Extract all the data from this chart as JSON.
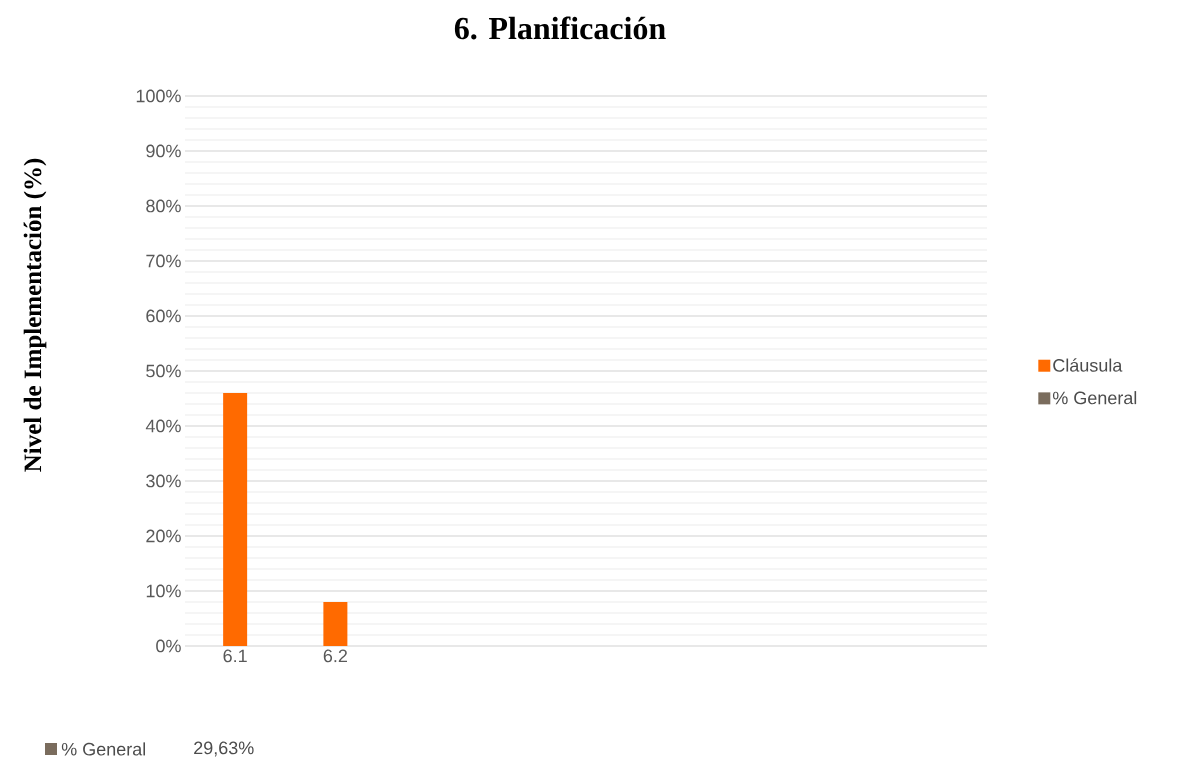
{
  "chart_data": {
    "type": "bar",
    "title": "6. Planificación",
    "ylabel": "Nivel de Implementación (%)",
    "categories": [
      "6.1",
      "6.2",
      null,
      null,
      null,
      null,
      null,
      null
    ],
    "series": [
      {
        "name": "Cláusula",
        "color": "#ff6a00",
        "values": [
          46,
          8,
          null,
          null,
          null,
          null,
          null,
          null
        ]
      },
      {
        "name": "% General",
        "color": "#7a6c5d",
        "values": [
          null,
          null,
          null,
          null,
          null,
          null,
          null,
          null
        ]
      }
    ],
    "ylim": [
      0,
      100
    ],
    "yticks": [
      {
        "value": 0,
        "label": "0%"
      },
      {
        "value": 10,
        "label": "10%"
      },
      {
        "value": 20,
        "label": "20%"
      },
      {
        "value": 30,
        "label": "30%"
      },
      {
        "value": 40,
        "label": "40%"
      },
      {
        "value": 50,
        "label": "50%"
      },
      {
        "value": 60,
        "label": "60%"
      },
      {
        "value": 70,
        "label": "70%"
      },
      {
        "value": 80,
        "label": "80%"
      },
      {
        "value": 90,
        "label": "90%"
      },
      {
        "value": 100,
        "label": "100%"
      }
    ],
    "grid": "y",
    "legend": "right",
    "annotations": [
      "29,63%"
    ]
  }
}
